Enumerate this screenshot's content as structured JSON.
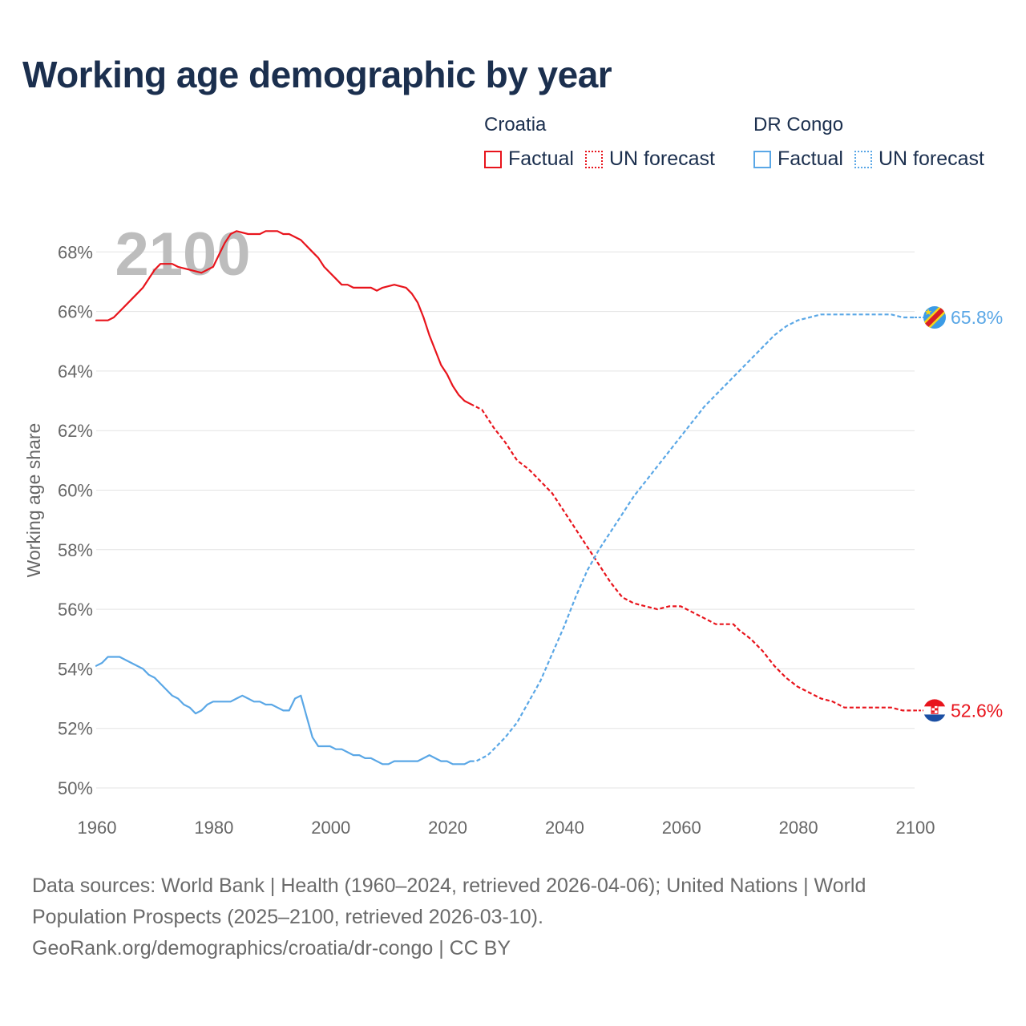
{
  "title": "Working age demographic by year",
  "legend": {
    "groups": [
      {
        "name": "Croatia",
        "color": "#e8141c",
        "items": [
          {
            "label": "Factual",
            "style": "solid"
          },
          {
            "label": "UN forecast",
            "style": "dotted"
          }
        ]
      },
      {
        "name": "DR Congo",
        "color": "#5aa7e6",
        "items": [
          {
            "label": "Factual",
            "style": "solid"
          },
          {
            "label": "UN forecast",
            "style": "dotted"
          }
        ]
      }
    ]
  },
  "year_watermark": "2100",
  "footer": {
    "line1": "Data sources: World Bank | Health (1960–2024, retrieved 2026-04-06); United Nations | World",
    "line2": "Population Prospects (2025–2100, retrieved 2026-03-10).",
    "line3": "GeoRank.org/demographics/croatia/dr-congo | CC BY"
  },
  "chart_data": {
    "type": "line",
    "title": "Working age demographic by year",
    "xlabel": "",
    "ylabel": "Working age share",
    "xlim": [
      1960,
      2100
    ],
    "ylim": [
      50,
      69
    ],
    "x_ticks": [
      1960,
      1980,
      2000,
      2020,
      2040,
      2060,
      2080,
      2100
    ],
    "y_ticks": [
      50,
      52,
      54,
      56,
      58,
      60,
      62,
      64,
      66,
      68
    ],
    "y_tick_suffix": "%",
    "grid": true,
    "forecast_start": 2024,
    "series": [
      {
        "name": "Croatia",
        "color": "#e8141c",
        "end_label": "52.6%",
        "flag": "croatia-flag",
        "points": [
          [
            1960,
            65.7
          ],
          [
            1962,
            65.7
          ],
          [
            1963,
            65.8
          ],
          [
            1965,
            66.2
          ],
          [
            1967,
            66.6
          ],
          [
            1968,
            66.8
          ],
          [
            1970,
            67.4
          ],
          [
            1971,
            67.6
          ],
          [
            1973,
            67.6
          ],
          [
            1974,
            67.5
          ],
          [
            1976,
            67.4
          ],
          [
            1978,
            67.3
          ],
          [
            1980,
            67.5
          ],
          [
            1981,
            67.9
          ],
          [
            1982,
            68.3
          ],
          [
            1983,
            68.6
          ],
          [
            1984,
            68.7
          ],
          [
            1986,
            68.6
          ],
          [
            1988,
            68.6
          ],
          [
            1989,
            68.7
          ],
          [
            1991,
            68.7
          ],
          [
            1992,
            68.6
          ],
          [
            1993,
            68.6
          ],
          [
            1995,
            68.4
          ],
          [
            1997,
            68.0
          ],
          [
            1998,
            67.8
          ],
          [
            1999,
            67.5
          ],
          [
            2001,
            67.1
          ],
          [
            2002,
            66.9
          ],
          [
            2003,
            66.9
          ],
          [
            2004,
            66.8
          ],
          [
            2007,
            66.8
          ],
          [
            2008,
            66.7
          ],
          [
            2009,
            66.8
          ],
          [
            2011,
            66.9
          ],
          [
            2013,
            66.8
          ],
          [
            2014,
            66.6
          ],
          [
            2015,
            66.3
          ],
          [
            2016,
            65.8
          ],
          [
            2017,
            65.2
          ],
          [
            2018,
            64.7
          ],
          [
            2019,
            64.2
          ],
          [
            2020,
            63.9
          ],
          [
            2021,
            63.5
          ],
          [
            2022,
            63.2
          ],
          [
            2023,
            63.0
          ],
          [
            2024,
            62.9
          ],
          [
            2025,
            62.8
          ],
          [
            2026,
            62.7
          ],
          [
            2027,
            62.4
          ],
          [
            2028,
            62.1
          ],
          [
            2030,
            61.6
          ],
          [
            2032,
            61.0
          ],
          [
            2034,
            60.7
          ],
          [
            2036,
            60.3
          ],
          [
            2038,
            59.9
          ],
          [
            2040,
            59.3
          ],
          [
            2042,
            58.7
          ],
          [
            2044,
            58.1
          ],
          [
            2046,
            57.5
          ],
          [
            2048,
            56.9
          ],
          [
            2050,
            56.4
          ],
          [
            2052,
            56.2
          ],
          [
            2054,
            56.1
          ],
          [
            2056,
            56.0
          ],
          [
            2058,
            56.1
          ],
          [
            2060,
            56.1
          ],
          [
            2062,
            55.9
          ],
          [
            2064,
            55.7
          ],
          [
            2066,
            55.5
          ],
          [
            2069,
            55.5
          ],
          [
            2070,
            55.3
          ],
          [
            2072,
            55.0
          ],
          [
            2074,
            54.6
          ],
          [
            2076,
            54.1
          ],
          [
            2078,
            53.7
          ],
          [
            2080,
            53.4
          ],
          [
            2082,
            53.2
          ],
          [
            2084,
            53.0
          ],
          [
            2086,
            52.9
          ],
          [
            2088,
            52.7
          ],
          [
            2091,
            52.7
          ],
          [
            2094,
            52.7
          ],
          [
            2096,
            52.7
          ],
          [
            2098,
            52.6
          ],
          [
            2100,
            52.6
          ]
        ]
      },
      {
        "name": "DR Congo",
        "color": "#5aa7e6",
        "end_label": "65.8%",
        "flag": "dr-congo-flag",
        "points": [
          [
            1960,
            54.1
          ],
          [
            1961,
            54.2
          ],
          [
            1962,
            54.4
          ],
          [
            1964,
            54.4
          ],
          [
            1966,
            54.2
          ],
          [
            1968,
            54.0
          ],
          [
            1969,
            53.8
          ],
          [
            1970,
            53.7
          ],
          [
            1972,
            53.3
          ],
          [
            1973,
            53.1
          ],
          [
            1974,
            53.0
          ],
          [
            1975,
            52.8
          ],
          [
            1976,
            52.7
          ],
          [
            1977,
            52.5
          ],
          [
            1978,
            52.6
          ],
          [
            1979,
            52.8
          ],
          [
            1980,
            52.9
          ],
          [
            1983,
            52.9
          ],
          [
            1984,
            53.0
          ],
          [
            1985,
            53.1
          ],
          [
            1986,
            53.0
          ],
          [
            1987,
            52.9
          ],
          [
            1988,
            52.9
          ],
          [
            1989,
            52.8
          ],
          [
            1990,
            52.8
          ],
          [
            1991,
            52.7
          ],
          [
            1992,
            52.6
          ],
          [
            1993,
            52.6
          ],
          [
            1994,
            53.0
          ],
          [
            1995,
            53.1
          ],
          [
            1996,
            52.4
          ],
          [
            1997,
            51.7
          ],
          [
            1998,
            51.4
          ],
          [
            2000,
            51.4
          ],
          [
            2001,
            51.3
          ],
          [
            2002,
            51.3
          ],
          [
            2004,
            51.1
          ],
          [
            2005,
            51.1
          ],
          [
            2006,
            51.0
          ],
          [
            2007,
            51.0
          ],
          [
            2009,
            50.8
          ],
          [
            2010,
            50.8
          ],
          [
            2011,
            50.9
          ],
          [
            2015,
            50.9
          ],
          [
            2017,
            51.1
          ],
          [
            2019,
            50.9
          ],
          [
            2020,
            50.9
          ],
          [
            2021,
            50.8
          ],
          [
            2023,
            50.8
          ],
          [
            2024,
            50.9
          ],
          [
            2025,
            50.9
          ],
          [
            2026,
            51.0
          ],
          [
            2027,
            51.1
          ],
          [
            2028,
            51.3
          ],
          [
            2030,
            51.7
          ],
          [
            2032,
            52.2
          ],
          [
            2034,
            52.9
          ],
          [
            2036,
            53.6
          ],
          [
            2038,
            54.5
          ],
          [
            2040,
            55.4
          ],
          [
            2042,
            56.4
          ],
          [
            2044,
            57.3
          ],
          [
            2046,
            58.0
          ],
          [
            2048,
            58.6
          ],
          [
            2050,
            59.2
          ],
          [
            2052,
            59.8
          ],
          [
            2054,
            60.3
          ],
          [
            2056,
            60.8
          ],
          [
            2058,
            61.3
          ],
          [
            2060,
            61.8
          ],
          [
            2062,
            62.3
          ],
          [
            2064,
            62.8
          ],
          [
            2066,
            63.2
          ],
          [
            2068,
            63.6
          ],
          [
            2070,
            64.0
          ],
          [
            2072,
            64.4
          ],
          [
            2074,
            64.8
          ],
          [
            2076,
            65.2
          ],
          [
            2078,
            65.5
          ],
          [
            2080,
            65.7
          ],
          [
            2082,
            65.8
          ],
          [
            2084,
            65.9
          ],
          [
            2086,
            65.9
          ],
          [
            2090,
            65.9
          ],
          [
            2094,
            65.9
          ],
          [
            2096,
            65.9
          ],
          [
            2098,
            65.8
          ],
          [
            2100,
            65.8
          ]
        ]
      }
    ]
  }
}
